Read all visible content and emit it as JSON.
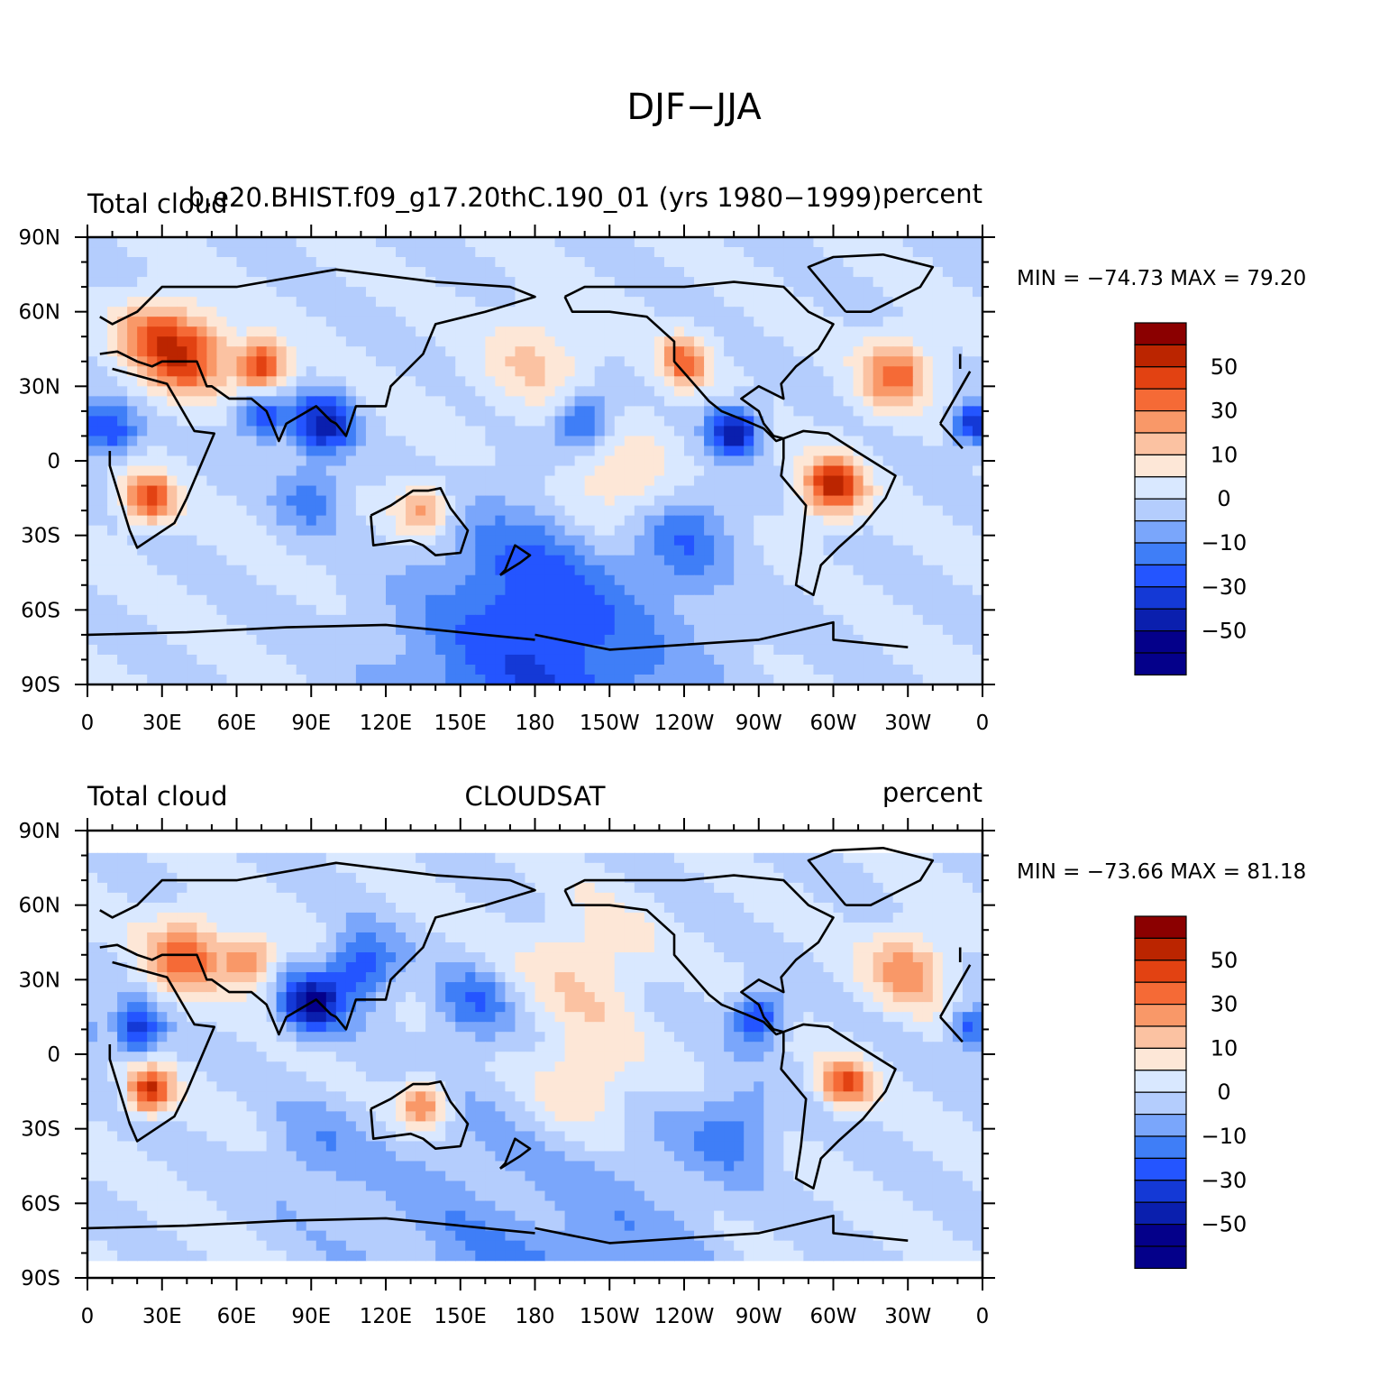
{
  "figure": {
    "title": "DJF−JJA"
  },
  "chart_data": [
    {
      "type": "heatmap",
      "subtitle_left": "Total cloud",
      "subtitle_center": "b.e20.BHIST.f09_g17.20thC.190_01 (yrs 1980−1999)",
      "subtitle_right": "percent",
      "stats": "MIN = −74.73 MAX =   79.20",
      "y_ticks": [
        "90N",
        "60N",
        "30N",
        "0",
        "30S",
        "60S",
        "90S"
      ],
      "x_ticks": [
        "0",
        "30E",
        "60E",
        "90E",
        "120E",
        "150E",
        "180",
        "150W",
        "120W",
        "90W",
        "60W",
        "30W",
        "0"
      ],
      "lon_range": [
        0,
        360
      ],
      "lat_range": [
        -90,
        90
      ],
      "colorbar_labels": [
        "50",
        "30",
        "10",
        "0",
        "−10",
        "−30",
        "−50"
      ],
      "features": [
        {
          "lon": 40,
          "lat": 42,
          "v": 55,
          "s": 16
        },
        {
          "lon": 70,
          "lat": 38,
          "v": 60,
          "s": 10
        },
        {
          "lon": 25,
          "lat": 52,
          "v": 35,
          "s": 14
        },
        {
          "lon": 95,
          "lat": 15,
          "v": -55,
          "s": 12
        },
        {
          "lon": 70,
          "lat": 18,
          "v": -40,
          "s": 10
        },
        {
          "lon": 10,
          "lat": 12,
          "v": -40,
          "s": 10
        },
        {
          "lon": 180,
          "lat": 40,
          "v": 20,
          "s": 20
        },
        {
          "lon": 200,
          "lat": 15,
          "v": -40,
          "s": 12
        },
        {
          "lon": 240,
          "lat": 40,
          "v": 45,
          "s": 10
        },
        {
          "lon": 260,
          "lat": 12,
          "v": -60,
          "s": 10
        },
        {
          "lon": 325,
          "lat": 35,
          "v": 45,
          "s": 14
        },
        {
          "lon": 355,
          "lat": 15,
          "v": -45,
          "s": 8
        },
        {
          "lon": 25,
          "lat": -15,
          "v": 55,
          "s": 10
        },
        {
          "lon": 300,
          "lat": -10,
          "v": 65,
          "s": 12
        },
        {
          "lon": 135,
          "lat": -20,
          "v": 35,
          "s": 11
        },
        {
          "lon": 210,
          "lat": -10,
          "v": 25,
          "s": 25
        },
        {
          "lon": 90,
          "lat": -15,
          "v": -25,
          "s": 14
        },
        {
          "lon": 240,
          "lat": -30,
          "v": -25,
          "s": 18
        },
        {
          "lon": 180,
          "lat": -40,
          "v": -15,
          "s": 30
        },
        {
          "lon": 180,
          "lat": -82,
          "v": -45,
          "s": 60
        },
        {
          "lon": 170,
          "lat": -62,
          "v": 10,
          "s": 70
        }
      ]
    },
    {
      "type": "heatmap",
      "subtitle_left": "Total cloud",
      "subtitle_center": "CLOUDSAT",
      "subtitle_right": "percent",
      "stats": "MIN = −73.66 MAX =   81.18",
      "y_ticks": [
        "90N",
        "60N",
        "30N",
        "0",
        "30S",
        "60S",
        "90S"
      ],
      "x_ticks": [
        "0",
        "30E",
        "60E",
        "90E",
        "120E",
        "150E",
        "180",
        "150W",
        "120W",
        "90W",
        "60W",
        "30W",
        "0"
      ],
      "lon_range": [
        0,
        360
      ],
      "lat_range": [
        -90,
        90
      ],
      "data_lat_range": [
        -81,
        81
      ],
      "colorbar_labels": [
        "50",
        "30",
        "10",
        "0",
        "−10",
        "−30",
        "−50"
      ],
      "features": [
        {
          "lon": 40,
          "lat": 40,
          "v": 45,
          "s": 16
        },
        {
          "lon": 65,
          "lat": 38,
          "v": 40,
          "s": 10
        },
        {
          "lon": 90,
          "lat": 20,
          "v": -60,
          "s": 12
        },
        {
          "lon": 110,
          "lat": 35,
          "v": -40,
          "s": 14
        },
        {
          "lon": 20,
          "lat": 10,
          "v": -45,
          "s": 10
        },
        {
          "lon": 200,
          "lat": 35,
          "v": 20,
          "s": 25
        },
        {
          "lon": 155,
          "lat": 20,
          "v": -25,
          "s": 15
        },
        {
          "lon": 270,
          "lat": 15,
          "v": -45,
          "s": 10
        },
        {
          "lon": 330,
          "lat": 35,
          "v": 35,
          "s": 16
        },
        {
          "lon": 355,
          "lat": 10,
          "v": -40,
          "s": 8
        },
        {
          "lon": 25,
          "lat": -15,
          "v": 60,
          "s": 9
        },
        {
          "lon": 305,
          "lat": -12,
          "v": 50,
          "s": 10
        },
        {
          "lon": 135,
          "lat": -20,
          "v": 45,
          "s": 10
        },
        {
          "lon": 200,
          "lat": -10,
          "v": 25,
          "s": 22
        },
        {
          "lon": 260,
          "lat": -30,
          "v": -25,
          "s": 16
        },
        {
          "lon": 90,
          "lat": -40,
          "v": -15,
          "s": 20
        },
        {
          "lon": 180,
          "lat": -75,
          "v": -30,
          "s": 60
        },
        {
          "lon": 180,
          "lat": -60,
          "v": 15,
          "s": 40
        }
      ]
    }
  ]
}
